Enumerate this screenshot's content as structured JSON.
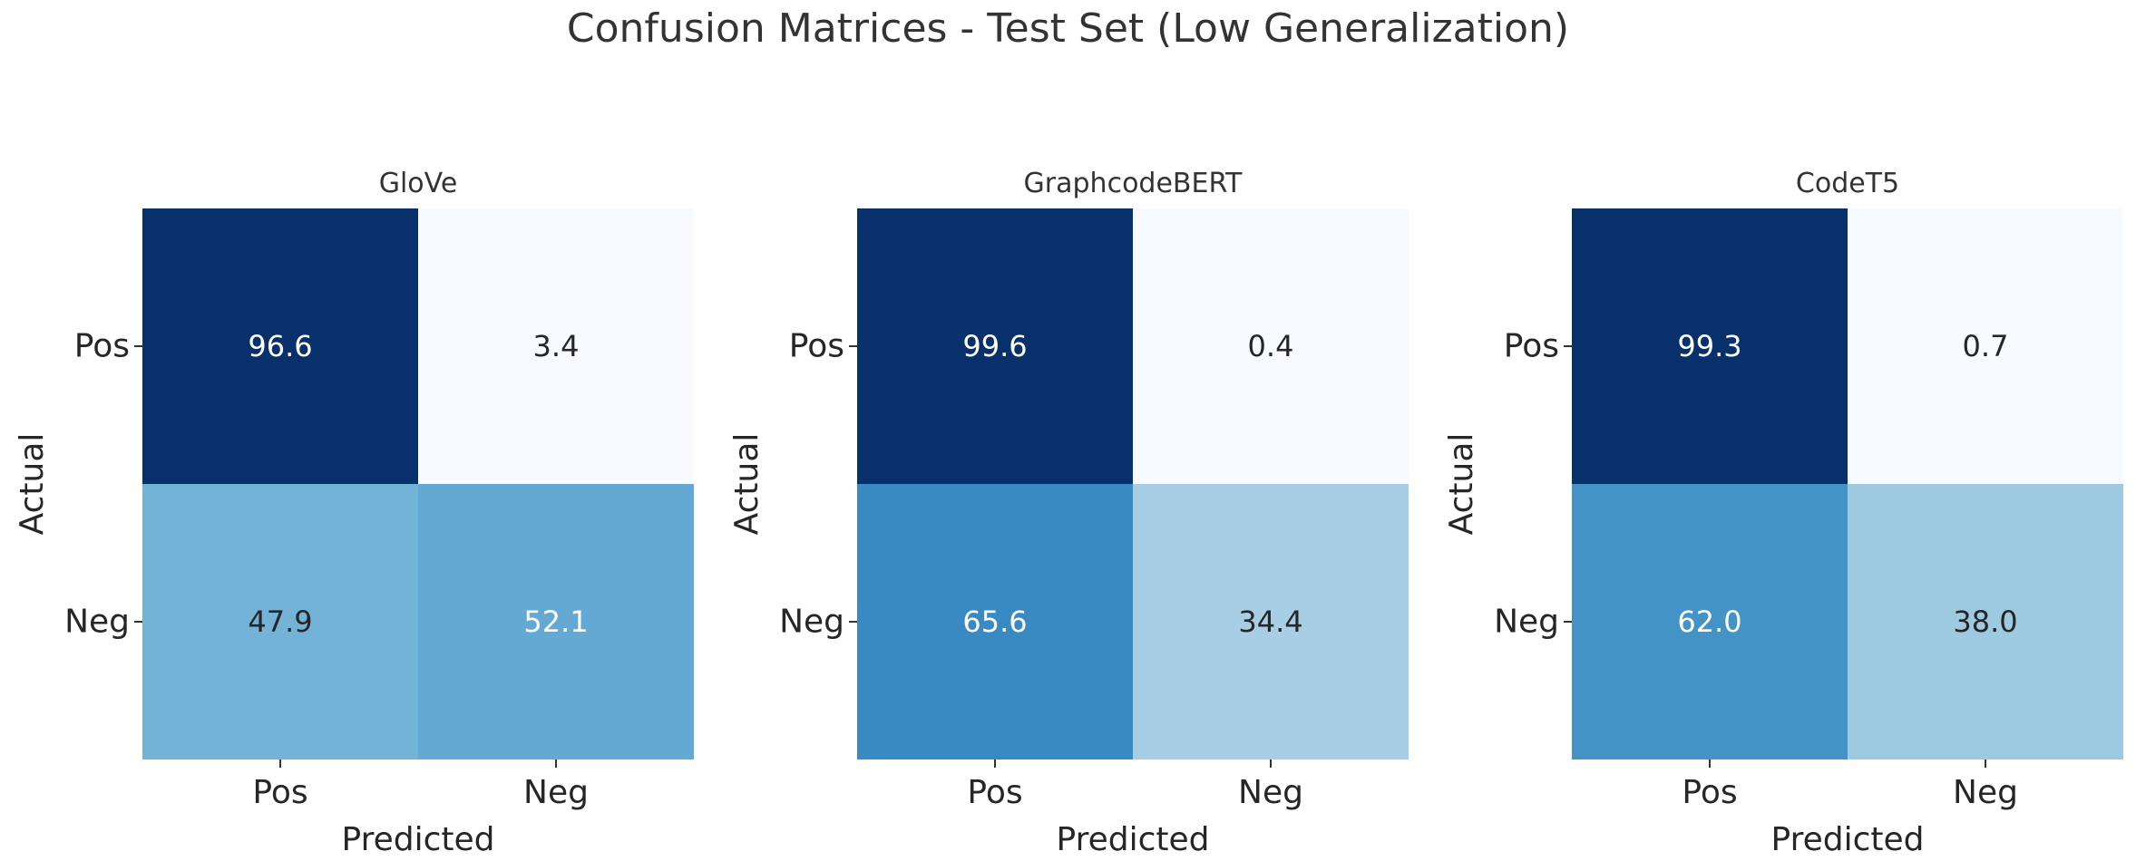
{
  "figure": {
    "title": "Confusion Matrices - Test Set (Low Generalization)"
  },
  "colors": {
    "cmap": "Blues",
    "cmap_low": "#f7fbff",
    "cmap_high": "#08306b",
    "text_dark": "#262626",
    "text_light": "#ffffff"
  },
  "chart_data": [
    {
      "type": "heatmap",
      "title": "GloVe",
      "xlabel": "Predicted",
      "ylabel": "Actual",
      "x_categories": [
        "Pos",
        "Neg"
      ],
      "y_categories": [
        "Pos",
        "Neg"
      ],
      "values": [
        [
          96.6,
          3.4
        ],
        [
          47.9,
          52.1
        ]
      ],
      "value_labels": [
        [
          "96.6",
          "3.4"
        ],
        [
          "47.9",
          "52.1"
        ]
      ],
      "color_range": [
        3.4,
        96.6
      ]
    },
    {
      "type": "heatmap",
      "title": "GraphcodeBERT",
      "xlabel": "Predicted",
      "ylabel": "Actual",
      "x_categories": [
        "Pos",
        "Neg"
      ],
      "y_categories": [
        "Pos",
        "Neg"
      ],
      "values": [
        [
          99.6,
          0.4
        ],
        [
          65.6,
          34.4
        ]
      ],
      "value_labels": [
        [
          "99.6",
          "0.4"
        ],
        [
          "65.6",
          "34.4"
        ]
      ],
      "color_range": [
        0.4,
        99.6
      ]
    },
    {
      "type": "heatmap",
      "title": "CodeT5",
      "xlabel": "Predicted",
      "ylabel": "Actual",
      "x_categories": [
        "Pos",
        "Neg"
      ],
      "y_categories": [
        "Pos",
        "Neg"
      ],
      "values": [
        [
          99.3,
          0.7
        ],
        [
          62.0,
          38.0
        ]
      ],
      "value_labels": [
        [
          "99.3",
          "0.7"
        ],
        [
          "62.0",
          "38.0"
        ]
      ],
      "color_range": [
        0.7,
        99.3
      ]
    }
  ]
}
